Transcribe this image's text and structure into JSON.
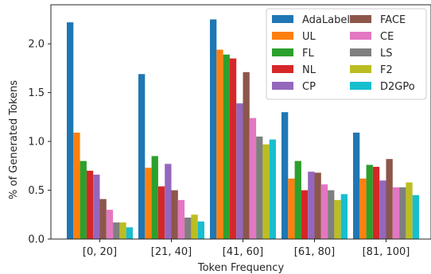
{
  "chart_data": {
    "type": "bar",
    "xlabel": "Token Frequency",
    "ylabel": "% of Generated Tokens",
    "ylim": [
      0,
      2.4
    ],
    "yticks": [
      "0.0",
      "0.5",
      "1.0",
      "1.5",
      "2.0"
    ],
    "categories": [
      "[0, 20]",
      "[21, 40]",
      "[41, 60]",
      "[61, 80]",
      "[81, 100]"
    ],
    "legend_position": "top-right",
    "grid": false,
    "series": [
      {
        "name": "AdaLabel",
        "color": "#1f77b4",
        "values": [
          2.22,
          1.69,
          2.25,
          1.3,
          1.09
        ]
      },
      {
        "name": "UL",
        "color": "#ff7f0e",
        "values": [
          1.09,
          0.73,
          1.94,
          0.62,
          0.62
        ]
      },
      {
        "name": "FL",
        "color": "#2ca02c",
        "values": [
          0.8,
          0.85,
          1.89,
          0.8,
          0.76
        ]
      },
      {
        "name": "NL",
        "color": "#d62728",
        "values": [
          0.7,
          0.54,
          1.85,
          0.5,
          0.74
        ]
      },
      {
        "name": "CP",
        "color": "#9467bd",
        "values": [
          0.66,
          0.77,
          1.39,
          0.69,
          0.6
        ]
      },
      {
        "name": "FACE",
        "color": "#8c564b",
        "values": [
          0.41,
          0.5,
          1.71,
          0.68,
          0.82
        ]
      },
      {
        "name": "CE",
        "color": "#e377c2",
        "values": [
          0.3,
          0.4,
          1.24,
          0.56,
          0.53
        ]
      },
      {
        "name": "LS",
        "color": "#7f7f7f",
        "values": [
          0.17,
          0.22,
          1.05,
          0.5,
          0.53
        ]
      },
      {
        "name": "F2",
        "color": "#bcbd22",
        "values": [
          0.17,
          0.25,
          0.97,
          0.4,
          0.58
        ]
      },
      {
        "name": "D2GPo",
        "color": "#17becf",
        "values": [
          0.12,
          0.18,
          1.02,
          0.46,
          0.45
        ]
      }
    ]
  }
}
